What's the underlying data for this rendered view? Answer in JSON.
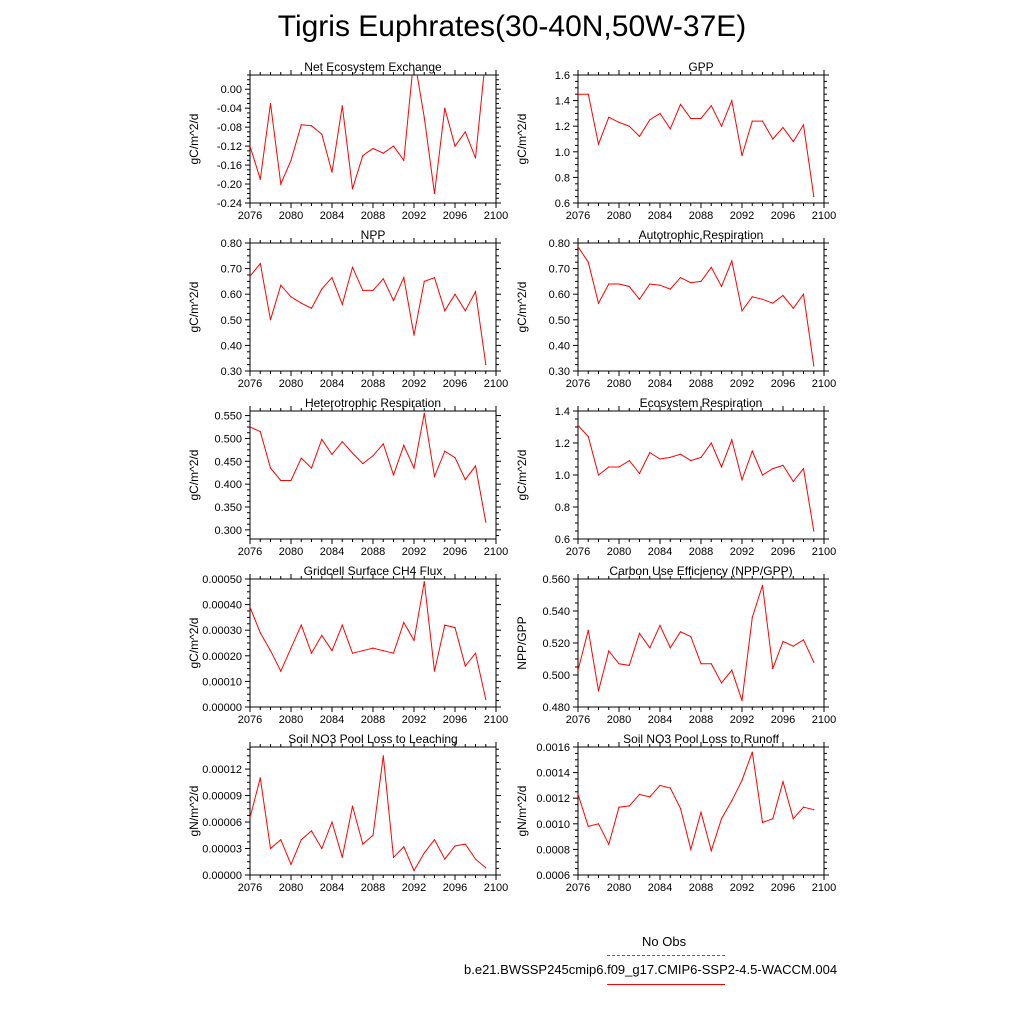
{
  "title": "Tigris Euphrates(30-40N,50W-37E)",
  "colors": {
    "series": "#ff0000",
    "obs": "#5555cc",
    "axis": "#000000"
  },
  "legend": {
    "obs_label": "No Obs",
    "model_label": "b.e21.BWSSP245cmip6.f09_g17.CMIP6-SSP2-4.5-WACCM.004"
  },
  "chart_data": [
    {
      "type": "line",
      "title": "Net Ecosystem Exchange",
      "ylabel": "gC/m^2/d",
      "xlabel": "",
      "xlim": [
        2076,
        2100
      ],
      "ylim": [
        -0.24,
        0.03
      ],
      "xticks": [
        2076,
        2080,
        2084,
        2088,
        2092,
        2096,
        2100
      ],
      "yticks": [
        -0.24,
        -0.2,
        -0.16,
        -0.12,
        -0.08,
        -0.04,
        0.0
      ],
      "ytick_labels": [
        "-0.24",
        "-0.20",
        "-0.16",
        "-0.12",
        "-0.08",
        "-0.04",
        "0.00"
      ],
      "x": [
        2076,
        2077,
        2078,
        2079,
        2080,
        2081,
        2082,
        2083,
        2084,
        2085,
        2086,
        2087,
        2088,
        2089,
        2090,
        2091,
        2092,
        2093,
        2094,
        2095,
        2096,
        2097,
        2098,
        2099
      ],
      "y": [
        -0.12,
        -0.19,
        -0.03,
        -0.2,
        -0.15,
        -0.075,
        -0.077,
        -0.095,
        -0.175,
        -0.035,
        -0.21,
        -0.14,
        -0.125,
        -0.135,
        -0.12,
        -0.15,
        0.07,
        -0.06,
        -0.22,
        -0.04,
        -0.12,
        -0.09,
        -0.145,
        0.07
      ]
    },
    {
      "type": "line",
      "title": "GPP",
      "ylabel": "gC/m^2/d",
      "xlabel": "",
      "xlim": [
        2076,
        2100
      ],
      "ylim": [
        0.6,
        1.6
      ],
      "xticks": [
        2076,
        2080,
        2084,
        2088,
        2092,
        2096,
        2100
      ],
      "yticks": [
        0.6,
        0.8,
        1.0,
        1.2,
        1.4,
        1.6
      ],
      "ytick_labels": [
        "0.6",
        "0.8",
        "1.0",
        "1.2",
        "1.4",
        "1.6"
      ],
      "x": [
        2076,
        2077,
        2078,
        2079,
        2080,
        2081,
        2082,
        2083,
        2084,
        2085,
        2086,
        2087,
        2088,
        2089,
        2090,
        2091,
        2092,
        2093,
        2094,
        2095,
        2096,
        2097,
        2098,
        2099
      ],
      "y": [
        1.45,
        1.45,
        1.06,
        1.27,
        1.23,
        1.2,
        1.12,
        1.25,
        1.3,
        1.18,
        1.37,
        1.26,
        1.26,
        1.36,
        1.2,
        1.4,
        0.97,
        1.24,
        1.24,
        1.1,
        1.19,
        1.08,
        1.21,
        0.65
      ]
    },
    {
      "type": "line",
      "title": "NPP",
      "ylabel": "gC/m^2/d",
      "xlabel": "",
      "xlim": [
        2076,
        2100
      ],
      "ylim": [
        0.3,
        0.8
      ],
      "xticks": [
        2076,
        2080,
        2084,
        2088,
        2092,
        2096,
        2100
      ],
      "yticks": [
        0.3,
        0.4,
        0.5,
        0.6,
        0.7,
        0.8
      ],
      "ytick_labels": [
        "0.30",
        "0.40",
        "0.50",
        "0.60",
        "0.70",
        "0.80"
      ],
      "x": [
        2076,
        2077,
        2078,
        2079,
        2080,
        2081,
        2082,
        2083,
        2084,
        2085,
        2086,
        2087,
        2088,
        2089,
        2090,
        2091,
        2092,
        2093,
        2094,
        2095,
        2096,
        2097,
        2098,
        2099
      ],
      "y": [
        0.67,
        0.72,
        0.5,
        0.635,
        0.59,
        0.565,
        0.545,
        0.62,
        0.665,
        0.56,
        0.705,
        0.615,
        0.615,
        0.66,
        0.575,
        0.665,
        0.44,
        0.65,
        0.665,
        0.535,
        0.6,
        0.535,
        0.61,
        0.325
      ]
    },
    {
      "type": "line",
      "title": "Autotrophic Respiration",
      "ylabel": "gC/m^2/d",
      "xlabel": "",
      "xlim": [
        2076,
        2100
      ],
      "ylim": [
        0.3,
        0.8
      ],
      "xticks": [
        2076,
        2080,
        2084,
        2088,
        2092,
        2096,
        2100
      ],
      "yticks": [
        0.3,
        0.4,
        0.5,
        0.6,
        0.7,
        0.8
      ],
      "ytick_labels": [
        "0.30",
        "0.40",
        "0.50",
        "0.60",
        "0.70",
        "0.80"
      ],
      "x": [
        2076,
        2077,
        2078,
        2079,
        2080,
        2081,
        2082,
        2083,
        2084,
        2085,
        2086,
        2087,
        2088,
        2089,
        2090,
        2091,
        2092,
        2093,
        2094,
        2095,
        2096,
        2097,
        2098,
        2099
      ],
      "y": [
        0.785,
        0.725,
        0.565,
        0.64,
        0.64,
        0.63,
        0.58,
        0.64,
        0.635,
        0.62,
        0.665,
        0.645,
        0.65,
        0.705,
        0.63,
        0.73,
        0.535,
        0.59,
        0.58,
        0.565,
        0.595,
        0.545,
        0.6,
        0.32
      ]
    },
    {
      "type": "line",
      "title": "Heterotrophic Respiration",
      "ylabel": "gC/m^2/d",
      "xlabel": "",
      "xlim": [
        2076,
        2100
      ],
      "ylim": [
        0.28,
        0.56
      ],
      "xticks": [
        2076,
        2080,
        2084,
        2088,
        2092,
        2096,
        2100
      ],
      "yticks": [
        0.3,
        0.35,
        0.4,
        0.45,
        0.5,
        0.55
      ],
      "ytick_labels": [
        "0.300",
        "0.350",
        "0.400",
        "0.450",
        "0.500",
        "0.550"
      ],
      "x": [
        2076,
        2077,
        2078,
        2079,
        2080,
        2081,
        2082,
        2083,
        2084,
        2085,
        2086,
        2087,
        2088,
        2089,
        2090,
        2091,
        2092,
        2093,
        2094,
        2095,
        2096,
        2097,
        2098,
        2099
      ],
      "y": [
        0.525,
        0.515,
        0.435,
        0.408,
        0.408,
        0.457,
        0.435,
        0.498,
        0.465,
        0.493,
        0.468,
        0.445,
        0.462,
        0.488,
        0.42,
        0.485,
        0.435,
        0.555,
        0.417,
        0.472,
        0.458,
        0.41,
        0.44,
        0.317
      ]
    },
    {
      "type": "line",
      "title": "Ecosystem Respiration",
      "ylabel": "gC/m^2/d",
      "xlabel": "",
      "xlim": [
        2076,
        2100
      ],
      "ylim": [
        0.6,
        1.4
      ],
      "xticks": [
        2076,
        2080,
        2084,
        2088,
        2092,
        2096,
        2100
      ],
      "yticks": [
        0.6,
        0.8,
        1.0,
        1.2,
        1.4
      ],
      "ytick_labels": [
        "0.6",
        "0.8",
        "1.0",
        "1.2",
        "1.4"
      ],
      "x": [
        2076,
        2077,
        2078,
        2079,
        2080,
        2081,
        2082,
        2083,
        2084,
        2085,
        2086,
        2087,
        2088,
        2089,
        2090,
        2091,
        2092,
        2093,
        2094,
        2095,
        2096,
        2097,
        2098,
        2099
      ],
      "y": [
        1.31,
        1.24,
        1.0,
        1.05,
        1.05,
        1.09,
        1.01,
        1.14,
        1.1,
        1.11,
        1.13,
        1.09,
        1.11,
        1.2,
        1.05,
        1.22,
        0.97,
        1.15,
        1.0,
        1.04,
        1.06,
        0.96,
        1.04,
        0.65
      ]
    },
    {
      "type": "line",
      "title": "Gridcell Surface CH4 Flux",
      "ylabel": "gC/m^2/d",
      "xlabel": "",
      "xlim": [
        2076,
        2100
      ],
      "ylim": [
        0.0,
        0.0005
      ],
      "xticks": [
        2076,
        2080,
        2084,
        2088,
        2092,
        2096,
        2100
      ],
      "yticks": [
        0.0,
        0.0001,
        0.0002,
        0.0003,
        0.0004,
        0.0005
      ],
      "ytick_labels": [
        "0.00000",
        "0.00010",
        "0.00020",
        "0.00030",
        "0.00040",
        "0.00050"
      ],
      "x": [
        2076,
        2077,
        2078,
        2079,
        2080,
        2081,
        2082,
        2083,
        2084,
        2085,
        2086,
        2087,
        2088,
        2089,
        2090,
        2091,
        2092,
        2093,
        2094,
        2095,
        2096,
        2097,
        2098,
        2099
      ],
      "y": [
        0.00039,
        0.00029,
        0.00022,
        0.00014,
        0.00023,
        0.00032,
        0.00021,
        0.00028,
        0.00022,
        0.00032,
        0.00021,
        0.00022,
        0.00023,
        0.00022,
        0.00021,
        0.00033,
        0.00026,
        0.00049,
        0.00014,
        0.00032,
        0.00031,
        0.00016,
        0.00021,
        3e-05
      ]
    },
    {
      "type": "line",
      "title": "Carbon Use Efficiency (NPP/GPP)",
      "ylabel": "NPP/GPP",
      "xlabel": "",
      "xlim": [
        2076,
        2100
      ],
      "ylim": [
        0.48,
        0.56
      ],
      "xticks": [
        2076,
        2080,
        2084,
        2088,
        2092,
        2096,
        2100
      ],
      "yticks": [
        0.48,
        0.5,
        0.52,
        0.54,
        0.56
      ],
      "ytick_labels": [
        "0.480",
        "0.500",
        "0.520",
        "0.540",
        "0.560"
      ],
      "x": [
        2076,
        2077,
        2078,
        2079,
        2080,
        2081,
        2082,
        2083,
        2084,
        2085,
        2086,
        2087,
        2088,
        2089,
        2090,
        2091,
        2092,
        2093,
        2094,
        2095,
        2096,
        2097,
        2098,
        2099
      ],
      "y": [
        0.503,
        0.528,
        0.49,
        0.515,
        0.507,
        0.506,
        0.526,
        0.517,
        0.531,
        0.517,
        0.527,
        0.524,
        0.507,
        0.507,
        0.495,
        0.503,
        0.484,
        0.536,
        0.556,
        0.504,
        0.521,
        0.518,
        0.522,
        0.508
      ]
    },
    {
      "type": "line",
      "title": "Soil NO3 Pool Loss to Leaching",
      "ylabel": "gN/m^2/d",
      "xlabel": "",
      "xlim": [
        2076,
        2100
      ],
      "ylim": [
        0.0,
        0.000145
      ],
      "xticks": [
        2076,
        2080,
        2084,
        2088,
        2092,
        2096,
        2100
      ],
      "yticks": [
        0.0,
        3e-05,
        6e-05,
        9e-05,
        0.00012
      ],
      "ytick_labels": [
        "0.00000",
        "0.00003",
        "0.00006",
        "0.00009",
        "0.00012"
      ],
      "x": [
        2076,
        2077,
        2078,
        2079,
        2080,
        2081,
        2082,
        2083,
        2084,
        2085,
        2086,
        2087,
        2088,
        2089,
        2090,
        2091,
        2092,
        2093,
        2094,
        2095,
        2096,
        2097,
        2098,
        2099
      ],
      "y": [
        6.5e-05,
        0.00011,
        3e-05,
        4e-05,
        1.2e-05,
        4e-05,
        5e-05,
        3e-05,
        6e-05,
        2e-05,
        7.8e-05,
        3.5e-05,
        4.5e-05,
        0.000135,
        2e-05,
        3.2e-05,
        5e-06,
        2.5e-05,
        4e-05,
        1.8e-05,
        3.3e-05,
        3.5e-05,
        1.8e-05,
        8e-06
      ]
    },
    {
      "type": "line",
      "title": "Soil NO3 Pool Loss to Runoff",
      "ylabel": "gN/m^2/d",
      "xlabel": "",
      "xlim": [
        2076,
        2100
      ],
      "ylim": [
        0.0006,
        0.0016
      ],
      "xticks": [
        2076,
        2080,
        2084,
        2088,
        2092,
        2096,
        2100
      ],
      "yticks": [
        0.0006,
        0.0008,
        0.001,
        0.0012,
        0.0014,
        0.0016
      ],
      "ytick_labels": [
        "0.0006",
        "0.0008",
        "0.0010",
        "0.0012",
        "0.0014",
        "0.0016"
      ],
      "x": [
        2076,
        2077,
        2078,
        2079,
        2080,
        2081,
        2082,
        2083,
        2084,
        2085,
        2086,
        2087,
        2088,
        2089,
        2090,
        2091,
        2092,
        2093,
        2094,
        2095,
        2096,
        2097,
        2098,
        2099
      ],
      "y": [
        0.00123,
        0.00098,
        0.001,
        0.00084,
        0.00113,
        0.00114,
        0.00123,
        0.00121,
        0.0013,
        0.00128,
        0.00112,
        0.0008,
        0.00109,
        0.00079,
        0.00104,
        0.00118,
        0.00134,
        0.00156,
        0.00101,
        0.00104,
        0.00133,
        0.00104,
        0.00113,
        0.00111
      ]
    }
  ]
}
